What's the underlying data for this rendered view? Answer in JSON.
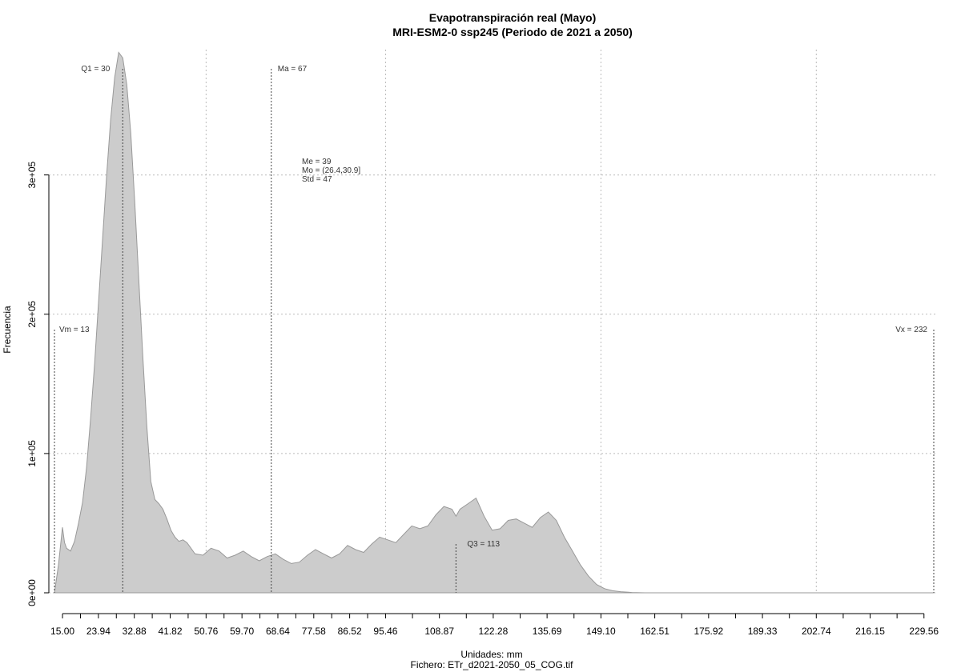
{
  "chart_data": {
    "type": "area",
    "title": "Evapotranspiración real (Mayo)",
    "subtitle": "MRI-ESM2-0 ssp245 (Periodo de 2021 a 2050)",
    "xlabel": "Unidades: mm",
    "file_note": "Fichero: ETr_d2021-2050_05_COG.tif",
    "ylabel": "Frecuencia",
    "xlim": [
      11.6,
      232.4
    ],
    "ylim": [
      0,
      390000
    ],
    "x_ticks": [
      15.0,
      23.94,
      32.88,
      41.82,
      50.76,
      59.7,
      68.64,
      77.58,
      86.52,
      95.46,
      108.87,
      122.28,
      135.69,
      149.1,
      162.51,
      175.92,
      189.33,
      202.74,
      216.15,
      229.56
    ],
    "x_tick_labels": [
      "15.00",
      "23.94",
      "32.88",
      "41.82",
      "50.76",
      "59.70",
      "68.64",
      "77.58",
      "86.52",
      "95.46",
      "108.87",
      "122.28",
      "135.69",
      "149.10",
      "162.51",
      "175.92",
      "189.33",
      "202.74",
      "216.15",
      "229.56"
    ],
    "y_ticks": [
      0,
      100000,
      200000,
      300000
    ],
    "y_tick_labels": [
      "0e+00",
      "1e+05",
      "2e+05",
      "3e+05"
    ],
    "grid": true,
    "fill_color": "#cccccc",
    "stroke_color": "#999999",
    "series": [
      {
        "x": [
          13,
          14,
          15,
          15.5,
          16,
          17,
          18,
          19,
          20,
          21,
          22,
          23,
          24,
          25,
          26,
          27,
          28,
          29,
          30,
          31,
          32,
          33,
          34,
          35,
          36,
          37,
          38,
          39,
          40,
          41,
          42,
          43,
          44,
          45,
          46,
          48,
          50,
          52,
          54,
          56,
          58,
          60,
          62,
          64,
          66,
          68,
          70,
          72,
          74,
          76,
          78,
          80,
          82,
          84,
          86,
          88,
          90,
          92,
          94,
          96,
          98,
          100,
          102,
          104,
          106,
          108,
          110,
          112,
          113,
          114,
          116,
          118,
          120,
          122,
          124,
          126,
          128,
          130,
          132,
          134,
          136,
          138,
          140,
          142,
          144,
          146,
          148,
          150,
          152,
          154,
          156,
          157,
          158,
          159,
          160,
          161,
          162,
          164,
          166,
          168,
          170,
          175,
          180,
          190,
          200,
          210,
          220,
          230,
          232
        ],
        "y": [
          0,
          20000,
          47000,
          36000,
          32000,
          30000,
          37000,
          50000,
          65000,
          90000,
          125000,
          165000,
          210000,
          255000,
          300000,
          340000,
          370000,
          388000,
          384000,
          365000,
          330000,
          280000,
          225000,
          170000,
          120000,
          80000,
          67000,
          64000,
          60000,
          53000,
          45000,
          40000,
          37000,
          38000,
          36000,
          28000,
          27000,
          32000,
          30000,
          25000,
          27000,
          30000,
          26000,
          23000,
          26000,
          28000,
          24000,
          21000,
          22000,
          27000,
          31000,
          28000,
          25000,
          28000,
          34000,
          31000,
          29000,
          35000,
          40000,
          38000,
          36000,
          42000,
          48000,
          46000,
          48000,
          56000,
          62000,
          60000,
          55000,
          60000,
          64000,
          68000,
          55000,
          45000,
          46000,
          52000,
          53000,
          50000,
          47000,
          54000,
          58000,
          52000,
          40000,
          30000,
          20000,
          12000,
          6000,
          3000,
          1500,
          800,
          400,
          200,
          100,
          50,
          20,
          10,
          5,
          2,
          1,
          0,
          0,
          0,
          0,
          0,
          0,
          0,
          0,
          0,
          0
        ]
      }
    ],
    "annotations": [
      {
        "label": "Q1 = 30",
        "x": 30,
        "line": true
      },
      {
        "label": "Ma = 67",
        "x": 67,
        "line": true
      },
      {
        "label": "Vm = 13",
        "x": 13,
        "line": true
      },
      {
        "label": "Vx = 232",
        "x": 232,
        "line": true
      },
      {
        "label": "Q3 = 113",
        "x": 113,
        "line": true
      }
    ],
    "stats": [
      "Me = 39",
      "Mo = (26.4,30.9]",
      "Std = 47"
    ]
  }
}
